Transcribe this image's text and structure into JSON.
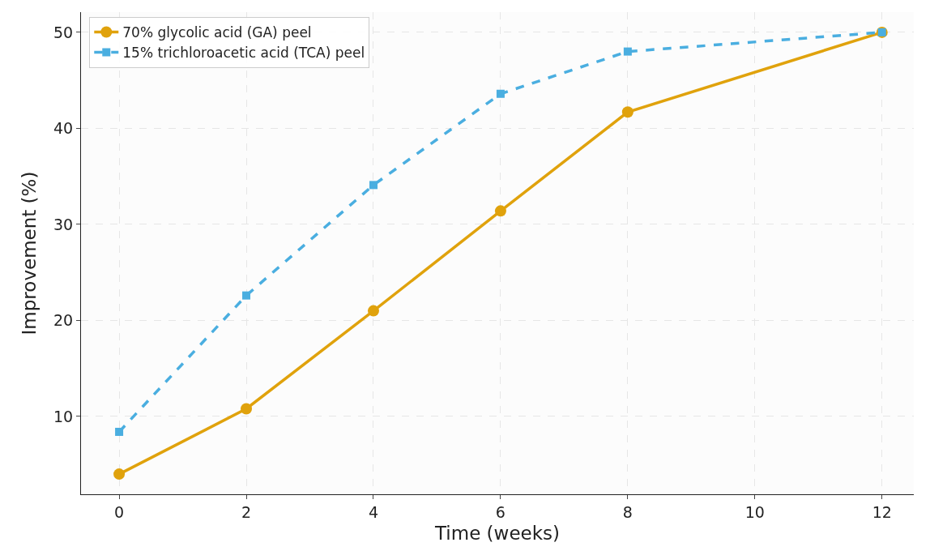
{
  "chart_data": {
    "type": "line",
    "xlabel": "Time (weeks)",
    "ylabel": "Improvement (%)",
    "xlim": [
      -0.6,
      12.5
    ],
    "xticks": [
      0,
      2,
      4,
      6,
      8,
      10,
      12
    ],
    "ylim": [
      1.9,
      52.1
    ],
    "yticks": [
      10,
      20,
      30,
      40,
      50
    ],
    "grid": true,
    "legend": "top left",
    "series": [
      {
        "name": "70% glycolic acid (GA) peel",
        "color": "#e0a20c",
        "marker": "circle",
        "line_style": "solid",
        "x": [
          0,
          2,
          4,
          6,
          8,
          12
        ],
        "values": [
          4,
          10.8,
          21,
          31.4,
          41.7,
          50
        ]
      },
      {
        "name": "15% trichloroacetic acid (TCA) peel",
        "color": "#4aaee0",
        "marker": "square",
        "line_style": "dashed",
        "x": [
          0,
          2,
          4,
          6,
          8,
          12
        ],
        "values": [
          8.4,
          22.6,
          34.1,
          43.6,
          48,
          50
        ]
      }
    ]
  }
}
